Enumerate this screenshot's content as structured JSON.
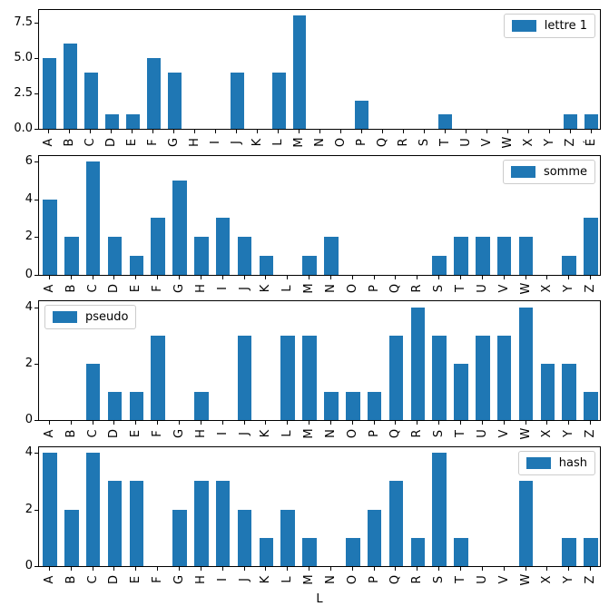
{
  "figure": {
    "background": "#ffffff",
    "bar_color": "#1f77b4",
    "text_color": "#000000",
    "spine_color": "#000000",
    "legend_border_color": "#cccccc",
    "xlabel": "L"
  },
  "chart_data": [
    {
      "type": "bar",
      "legend": "lettre 1",
      "legend_position": "upper-right",
      "grid": false,
      "categories": [
        "A",
        "B",
        "C",
        "D",
        "E",
        "F",
        "G",
        "H",
        "I",
        "J",
        "K",
        "L",
        "M",
        "N",
        "O",
        "P",
        "Q",
        "R",
        "S",
        "T",
        "U",
        "V",
        "W",
        "X",
        "Y",
        "Z",
        "É"
      ],
      "values": [
        5,
        6,
        4,
        1,
        1,
        5,
        4,
        0,
        0,
        4,
        0,
        4,
        8,
        0,
        0,
        2,
        0,
        0,
        0,
        1,
        0,
        0,
        0,
        0,
        0,
        1,
        1
      ],
      "ylim": [
        0,
        8.4
      ],
      "ytick_labels": [
        "0.0",
        "2.5",
        "5.0",
        "7.5"
      ],
      "ytick_values": [
        0,
        2.5,
        5,
        7.5
      ],
      "xlabel": ""
    },
    {
      "type": "bar",
      "legend": "somme",
      "legend_position": "upper-right",
      "grid": false,
      "categories": [
        "A",
        "B",
        "C",
        "D",
        "E",
        "F",
        "G",
        "H",
        "I",
        "J",
        "K",
        "L",
        "M",
        "N",
        "O",
        "P",
        "Q",
        "R",
        "S",
        "T",
        "U",
        "V",
        "W",
        "X",
        "Y",
        "Z"
      ],
      "values": [
        4,
        2,
        6,
        2,
        1,
        3,
        5,
        2,
        3,
        2,
        1,
        0,
        1,
        2,
        0,
        0,
        0,
        0,
        1,
        2,
        2,
        2,
        2,
        0,
        1,
        3
      ],
      "ylim": [
        0,
        6.3
      ],
      "ytick_labels": [
        "0",
        "2",
        "4",
        "6"
      ],
      "ytick_values": [
        0,
        2,
        4,
        6
      ],
      "xlabel": ""
    },
    {
      "type": "bar",
      "legend": "pseudo",
      "legend_position": "upper-left",
      "grid": false,
      "categories": [
        "A",
        "B",
        "C",
        "D",
        "E",
        "F",
        "G",
        "H",
        "I",
        "J",
        "K",
        "L",
        "M",
        "N",
        "O",
        "P",
        "Q",
        "R",
        "S",
        "T",
        "U",
        "V",
        "W",
        "X",
        "Y",
        "Z"
      ],
      "values": [
        0,
        0,
        2,
        1,
        1,
        3,
        0,
        1,
        0,
        3,
        0,
        3,
        3,
        1,
        1,
        1,
        3,
        4,
        3,
        2,
        3,
        3,
        4,
        2,
        2,
        1
      ],
      "ylim": [
        0,
        4.2
      ],
      "ytick_labels": [
        "0",
        "2",
        "4"
      ],
      "ytick_values": [
        0,
        2,
        4
      ],
      "xlabel": ""
    },
    {
      "type": "bar",
      "legend": "hash",
      "legend_position": "upper-right",
      "grid": false,
      "categories": [
        "A",
        "B",
        "C",
        "D",
        "E",
        "F",
        "G",
        "H",
        "I",
        "J",
        "K",
        "L",
        "M",
        "N",
        "O",
        "P",
        "Q",
        "R",
        "S",
        "T",
        "U",
        "V",
        "W",
        "X",
        "Y",
        "Z"
      ],
      "values": [
        4,
        2,
        4,
        3,
        3,
        0,
        2,
        3,
        3,
        2,
        1,
        2,
        1,
        0,
        1,
        2,
        3,
        1,
        4,
        1,
        0,
        0,
        3,
        0,
        1,
        1
      ],
      "ylim": [
        0,
        4.2
      ],
      "ytick_labels": [
        "0",
        "2",
        "4"
      ],
      "ytick_values": [
        0,
        2,
        4
      ],
      "xlabel": "L"
    }
  ]
}
